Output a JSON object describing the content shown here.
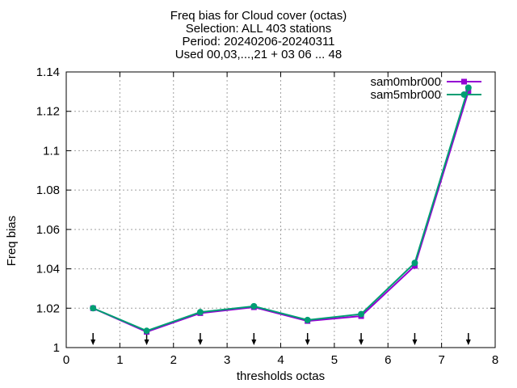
{
  "title_lines": [
    "Freq bias  for Cloud cover (octas)",
    "Selection: ALL    403 stations",
    "Period: 20240206-20240311",
    "Used 00,03,...,21 + 03 06 ... 48"
  ],
  "chart_data": {
    "type": "line",
    "xlabel": "thresholds octas",
    "ylabel": "Freq bias",
    "xlim": [
      0,
      8
    ],
    "ylim": [
      1,
      1.14
    ],
    "x_ticks": [
      "0",
      "1",
      "2",
      "3",
      "4",
      "5",
      "6",
      "7",
      "8"
    ],
    "y_ticks": [
      "1",
      "1.02",
      "1.04",
      "1.06",
      "1.08",
      "1.1",
      "1.12",
      "1.14"
    ],
    "grid": true,
    "legend_position": "top-right",
    "x": [
      0.5,
      1.5,
      2.5,
      3.5,
      4.5,
      5.5,
      6.5,
      7.5
    ],
    "series": [
      {
        "name": "sam0mbr000",
        "color": "#9400d3",
        "values": [
          1.02,
          1.008,
          1.0175,
          1.0205,
          1.0135,
          1.016,
          1.0415,
          1.13
        ]
      },
      {
        "name": "sam5mbr000",
        "color": "#009e73",
        "values": [
          1.02,
          1.0085,
          1.018,
          1.021,
          1.014,
          1.017,
          1.043,
          1.132
        ]
      }
    ],
    "arrows_x": [
      0.5,
      1.5,
      2.5,
      3.5,
      4.5,
      5.5,
      6.5,
      7.5
    ]
  }
}
